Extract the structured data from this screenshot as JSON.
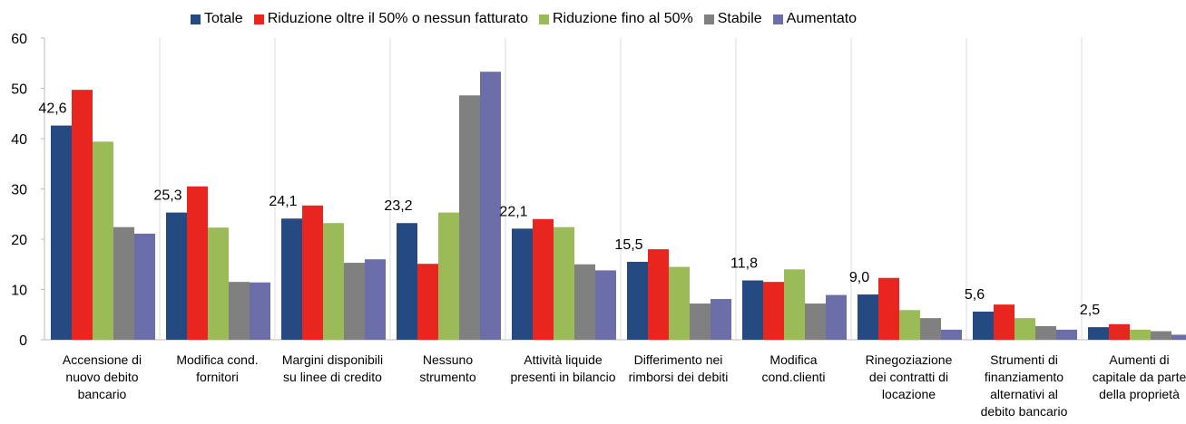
{
  "chart_data": {
    "type": "bar",
    "categories": [
      "Accensione di\nnuovo debito\nbancario",
      "Modifica cond.\nfornitori",
      "Margini disponibili\nsu linee di credito",
      "Nessuno\nstrumento",
      "Attività liquide\npresenti in bilancio",
      "Differimento nei\nrimborsi dei debiti",
      "Modifica\ncond.clienti",
      "Rinegoziazione\ndei contratti di\nlocazione",
      "Strumenti di\nfinanziamento\nalternativi al\ndebito bancario",
      "Aumenti di\ncapitale da parte\ndella proprietà"
    ],
    "series": [
      {
        "name": "Totale",
        "color": "#254a82",
        "values": [
          42.6,
          25.3,
          24.1,
          23.2,
          22.1,
          15.5,
          11.8,
          9.0,
          5.6,
          2.5
        ],
        "value_labels": [
          "42,6",
          "25,3",
          "24,1",
          "23,2",
          "22,1",
          "15,5",
          "11,8",
          "9,0",
          "5,6",
          "2,5"
        ]
      },
      {
        "name": "Riduzione oltre il 50% o nessun fatturato",
        "color": "#e8251f",
        "values": [
          49.7,
          30.5,
          26.7,
          15.1,
          24.0,
          18.0,
          11.5,
          12.3,
          7.0,
          3.1
        ]
      },
      {
        "name": "Riduzione fino al 50%",
        "color": "#9bbb59",
        "values": [
          39.4,
          22.3,
          23.2,
          25.3,
          22.4,
          14.5,
          14.0,
          5.9,
          4.3,
          2.0
        ]
      },
      {
        "name": "Stabile",
        "color": "#808080",
        "values": [
          22.4,
          11.5,
          15.3,
          48.6,
          15.0,
          7.2,
          7.2,
          4.3,
          2.7,
          1.7
        ]
      },
      {
        "name": "Aumentato",
        "color": "#6b6ea8",
        "values": [
          21.1,
          11.4,
          16.0,
          53.3,
          13.8,
          8.1,
          8.9,
          2.0,
          2.0,
          1.0
        ]
      }
    ],
    "ylim": [
      0,
      60
    ],
    "yticks": [
      0,
      10,
      20,
      30,
      40,
      50,
      60
    ],
    "grid": false
  }
}
